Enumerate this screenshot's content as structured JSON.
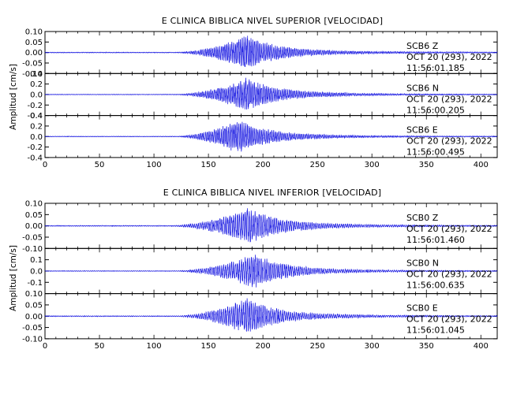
{
  "chart_data": [
    {
      "type": "line",
      "title": "E CLINICA BIBLICA NIVEL SUPERIOR [VELOCIDAD]",
      "ylabel": "Amplitud [cm/s]",
      "xlim": [
        0,
        415
      ],
      "xticks": [
        "0",
        "50",
        "100",
        "150",
        "200",
        "250",
        "300",
        "350",
        "400"
      ],
      "line_color": "#1010e0",
      "traces": [
        {
          "station": "SCB6",
          "component": "Z",
          "date": "OCT 20 (293), 2022",
          "time": "11:56:01.185",
          "ylim": [
            -0.1,
            0.1
          ],
          "yticks": [
            "0.10",
            "0.05",
            "0.00",
            "-0.05",
            "-0.10"
          ],
          "onset": 120,
          "peak_t": 183,
          "peak_amp": 0.09,
          "noise": 0.002,
          "period": 1.6
        },
        {
          "station": "SCB6",
          "component": "N",
          "date": "OCT 20 (293), 2022",
          "time": "11:56:00.205",
          "ylim": [
            -0.4,
            0.4
          ],
          "yticks": [
            "0.4",
            "0.2",
            "0.0",
            "-0.2",
            "-0.4"
          ],
          "onset": 120,
          "peak_t": 183,
          "peak_amp": 0.36,
          "noise": 0.006,
          "period": 1.6
        },
        {
          "station": "SCB6",
          "component": "E",
          "date": "OCT 20 (293), 2022",
          "time": "11:56:00.495",
          "ylim": [
            -0.4,
            0.4
          ],
          "yticks": [
            "0.4",
            "0.2",
            "0.0",
            "-0.2",
            "-0.4"
          ],
          "onset": 120,
          "peak_t": 175,
          "peak_amp": 0.36,
          "noise": 0.006,
          "period": 1.6
        }
      ]
    },
    {
      "type": "line",
      "title": "E CLINICA BIBLICA NIVEL INFERIOR [VELOCIDAD]",
      "ylabel": "Amplitud [cm/s]",
      "xlim": [
        0,
        415
      ],
      "xticks": [
        "0",
        "50",
        "100",
        "150",
        "200",
        "250",
        "300",
        "350",
        "400"
      ],
      "line_color": "#1010e0",
      "traces": [
        {
          "station": "SCB0",
          "component": "Z",
          "date": "OCT 20 (293), 2022",
          "time": "11:56:01.460",
          "ylim": [
            -0.1,
            0.1
          ],
          "yticks": [
            "0.10",
            "0.05",
            "0.00",
            "-0.05",
            "-0.10"
          ],
          "onset": 115,
          "peak_t": 185,
          "peak_amp": 0.09,
          "noise": 0.002,
          "period": 1.8
        },
        {
          "station": "SCB0",
          "component": "N",
          "date": "OCT 20 (293), 2022",
          "time": "11:56:00.635",
          "ylim": [
            -0.2,
            0.2
          ],
          "yticks": [
            "0.1",
            "0.0",
            "-0.1"
          ],
          "onset": 120,
          "peak_t": 190,
          "peak_amp": 0.17,
          "noise": 0.003,
          "period": 1.8
        },
        {
          "station": "SCB0",
          "component": "E",
          "date": "OCT 20 (293), 2022",
          "time": "11:56:01.045",
          "ylim": [
            -0.1,
            0.1
          ],
          "yticks": [
            "0.10",
            "0.05",
            "0.00",
            "-0.05",
            "-0.10"
          ],
          "onset": 120,
          "peak_t": 183,
          "peak_amp": 0.09,
          "noise": 0.002,
          "period": 1.8
        }
      ]
    }
  ]
}
